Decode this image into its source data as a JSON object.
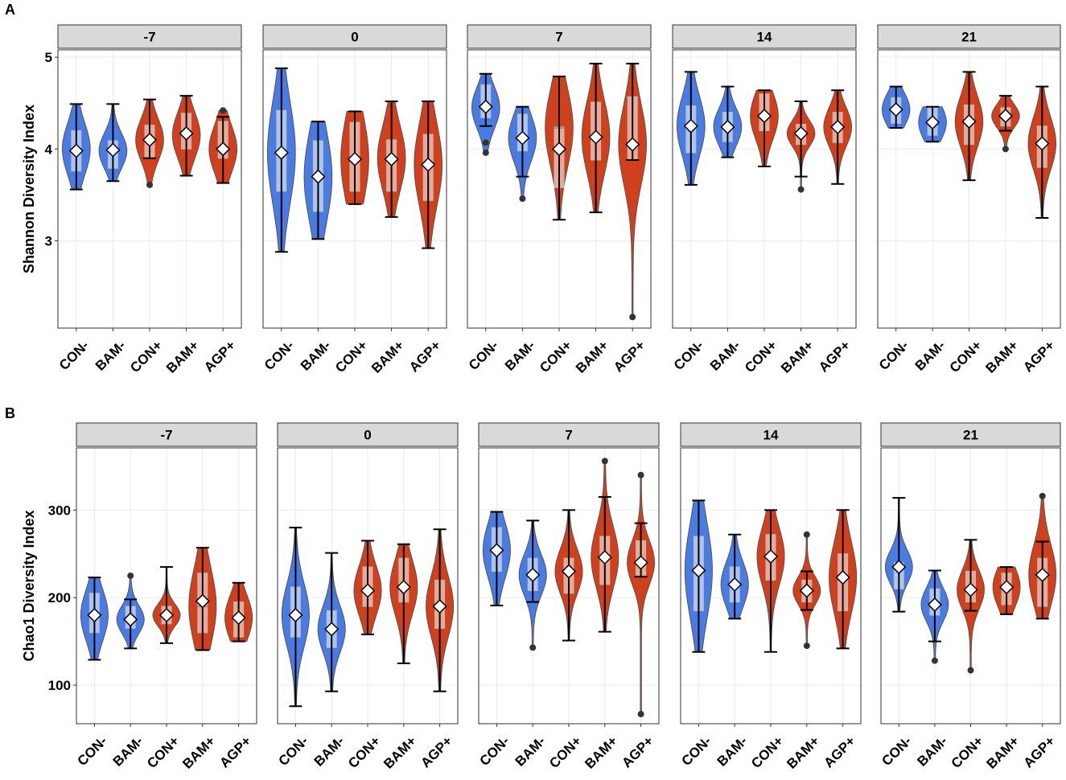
{
  "chart_data": [
    {
      "type": "violin",
      "label": "A",
      "y_label": "Shannon Diversity Index",
      "facets": [
        "-7",
        "0",
        "7",
        "14",
        "21"
      ],
      "categories": [
        "CON-",
        "BAM-",
        "CON+",
        "BAM+",
        "AGP+"
      ],
      "colors": [
        "#4a7be3",
        "#4a7be3",
        "#d0401c",
        "#d0401c",
        "#d0401c"
      ],
      "ylim": [
        2.05,
        5.08
      ],
      "yticks": [
        3,
        4,
        5
      ],
      "grid": true,
      "data": [
        [
          {
            "min": 3.56,
            "q1": 3.76,
            "median": 4.0,
            "q3": 4.2,
            "max": 4.49,
            "mean": 3.98
          },
          {
            "min": 3.65,
            "q1": 3.79,
            "median": 3.98,
            "q3": 4.09,
            "max": 4.49,
            "mean": 3.99
          },
          {
            "min": 3.9,
            "q1": 3.9,
            "median": 4.1,
            "q3": 4.26,
            "max": 4.54,
            "mean": 4.1,
            "outliers": [
              3.61
            ]
          },
          {
            "min": 3.71,
            "q1": 4.0,
            "median": 4.15,
            "q3": 4.39,
            "max": 4.58,
            "mean": 4.17
          },
          {
            "min": 3.63,
            "q1": 3.9,
            "median": 4.0,
            "q3": 4.3,
            "max": 4.35,
            "mean": 4.0,
            "outliers": [
              4.42
            ]
          }
        ],
        [
          {
            "min": 2.88,
            "q1": 3.54,
            "median": 3.96,
            "q3": 4.42,
            "max": 4.88,
            "mean": 3.96
          },
          {
            "min": 3.02,
            "q1": 3.32,
            "median": 3.7,
            "q3": 4.09,
            "max": 4.3,
            "mean": 3.7
          },
          {
            "min": 3.4,
            "q1": 3.54,
            "median": 3.89,
            "q3": 4.29,
            "max": 4.41,
            "mean": 3.89
          },
          {
            "min": 3.26,
            "q1": 3.54,
            "median": 3.9,
            "q3": 4.1,
            "max": 4.52,
            "mean": 3.89
          },
          {
            "min": 2.92,
            "q1": 3.44,
            "median": 3.83,
            "q3": 4.16,
            "max": 4.52,
            "mean": 3.83
          }
        ],
        [
          {
            "min": 4.25,
            "q1": 4.34,
            "median": 4.45,
            "q3": 4.7,
            "max": 4.82,
            "mean": 4.46,
            "outliers": [
              4.07,
              3.96
            ]
          },
          {
            "min": 3.7,
            "q1": 3.98,
            "median": 4.12,
            "q3": 4.38,
            "max": 4.46,
            "mean": 4.12,
            "outliers": [
              3.46
            ]
          },
          {
            "min": 3.23,
            "q1": 3.58,
            "median": 4.23,
            "q3": 4.24,
            "max": 4.79,
            "mean": 4.0
          },
          {
            "min": 3.31,
            "q1": 3.88,
            "median": 4.13,
            "q3": 4.51,
            "max": 4.93,
            "mean": 4.13
          },
          {
            "min": 3.88,
            "q1": 3.88,
            "median": 4.05,
            "q3": 4.57,
            "max": 4.93,
            "mean": 4.05,
            "outliers": [
              2.17
            ]
          }
        ],
        [
          {
            "min": 3.61,
            "q1": 3.96,
            "median": 4.25,
            "q3": 4.47,
            "max": 4.84,
            "mean": 4.25
          },
          {
            "min": 3.91,
            "q1": 4.08,
            "median": 4.24,
            "q3": 4.4,
            "max": 4.68,
            "mean": 4.24
          },
          {
            "min": 3.81,
            "q1": 4.2,
            "median": 4.36,
            "q3": 4.6,
            "max": 4.64,
            "mean": 4.36
          },
          {
            "min": 3.7,
            "q1": 4.05,
            "median": 4.17,
            "q3": 4.27,
            "max": 4.52,
            "mean": 4.17,
            "outliers": [
              3.56
            ]
          },
          {
            "min": 3.62,
            "q1": 4.07,
            "median": 4.24,
            "q3": 4.4,
            "max": 4.64,
            "mean": 4.24
          }
        ],
        [
          {
            "min": 4.23,
            "q1": 4.28,
            "median": 4.43,
            "q3": 4.56,
            "max": 4.68,
            "mean": 4.43
          },
          {
            "min": 4.08,
            "q1": 4.15,
            "median": 4.29,
            "q3": 4.45,
            "max": 4.46,
            "mean": 4.29
          },
          {
            "min": 3.66,
            "q1": 4.05,
            "median": 4.3,
            "q3": 4.48,
            "max": 4.84,
            "mean": 4.3
          },
          {
            "min": 4.2,
            "q1": 4.25,
            "median": 4.36,
            "q3": 4.45,
            "max": 4.58,
            "mean": 4.36,
            "outliers": [
              4.0
            ]
          },
          {
            "min": 3.25,
            "q1": 3.8,
            "median": 4.06,
            "q3": 4.25,
            "max": 4.68,
            "mean": 4.06
          }
        ]
      ]
    },
    {
      "type": "violin",
      "label": "B",
      "y_label": "Chao1 Diversity Index",
      "facets": [
        "-7",
        "0",
        "7",
        "14",
        "21"
      ],
      "categories": [
        "CON-",
        "BAM-",
        "CON+",
        "BAM+",
        "AGP+"
      ],
      "colors": [
        "#4a7be3",
        "#4a7be3",
        "#d0401c",
        "#d0401c",
        "#d0401c"
      ],
      "ylim": [
        56,
        371
      ],
      "yticks": [
        100,
        200,
        300
      ],
      "grid": true,
      "data": [
        [
          {
            "min": 129,
            "q1": 160,
            "median": 180,
            "q3": 205,
            "max": 223,
            "mean": 180
          },
          {
            "min": 142,
            "q1": 165,
            "median": 175,
            "q3": 190,
            "max": 198,
            "mean": 175,
            "outliers": [
              225
            ]
          },
          {
            "min": 148,
            "q1": 170,
            "median": 180,
            "q3": 190,
            "max": 235,
            "mean": 180
          },
          {
            "min": 140,
            "q1": 160,
            "median": 190,
            "q3": 228,
            "max": 257,
            "mean": 196
          },
          {
            "min": 150,
            "q1": 155,
            "median": 177,
            "q3": 195,
            "max": 217,
            "mean": 177
          }
        ],
        [
          {
            "min": 76,
            "q1": 155,
            "median": 180,
            "q3": 212,
            "max": 280,
            "mean": 180
          },
          {
            "min": 93,
            "q1": 143,
            "median": 164,
            "q3": 185,
            "max": 251,
            "mean": 164
          },
          {
            "min": 158,
            "q1": 190,
            "median": 208,
            "q3": 235,
            "max": 265,
            "mean": 208
          },
          {
            "min": 125,
            "q1": 195,
            "median": 212,
            "q3": 245,
            "max": 261,
            "mean": 212
          },
          {
            "min": 93,
            "q1": 165,
            "median": 190,
            "q3": 220,
            "max": 278,
            "mean": 190
          }
        ],
        [
          {
            "min": 191,
            "q1": 230,
            "median": 254,
            "q3": 280,
            "max": 298,
            "mean": 254
          },
          {
            "min": 195,
            "q1": 208,
            "median": 226,
            "q3": 245,
            "max": 288,
            "mean": 226,
            "outliers": [
              143
            ]
          },
          {
            "min": 151,
            "q1": 205,
            "median": 230,
            "q3": 245,
            "max": 300,
            "mean": 230
          },
          {
            "min": 161,
            "q1": 215,
            "median": 246,
            "q3": 270,
            "max": 315,
            "mean": 246,
            "outliers": [
              356
            ]
          },
          {
            "min": 224,
            "q1": 225,
            "median": 240,
            "q3": 265,
            "max": 285,
            "mean": 240,
            "outliers": [
              340,
              67
            ]
          }
        ],
        [
          {
            "min": 138,
            "q1": 185,
            "median": 231,
            "q3": 270,
            "max": 311,
            "mean": 231
          },
          {
            "min": 176,
            "q1": 195,
            "median": 215,
            "q3": 235,
            "max": 272,
            "mean": 215
          },
          {
            "min": 138,
            "q1": 220,
            "median": 247,
            "q3": 272,
            "max": 300,
            "mean": 247
          },
          {
            "min": 186,
            "q1": 195,
            "median": 208,
            "q3": 220,
            "max": 230,
            "mean": 208,
            "outliers": [
              272,
              145
            ]
          },
          {
            "min": 142,
            "q1": 185,
            "median": 223,
            "q3": 250,
            "max": 300,
            "mean": 223
          }
        ],
        [
          {
            "min": 184,
            "q1": 210,
            "median": 235,
            "q3": 240,
            "max": 314,
            "mean": 235
          },
          {
            "min": 150,
            "q1": 180,
            "median": 192,
            "q3": 210,
            "max": 231,
            "mean": 192,
            "outliers": [
              128
            ]
          },
          {
            "min": 185,
            "q1": 195,
            "median": 209,
            "q3": 230,
            "max": 266,
            "mean": 209,
            "outliers": [
              117
            ]
          },
          {
            "min": 181,
            "q1": 192,
            "median": 212,
            "q3": 228,
            "max": 235,
            "mean": 212
          },
          {
            "min": 176,
            "q1": 190,
            "median": 226,
            "q3": 245,
            "max": 264,
            "mean": 226,
            "outliers": [
              316
            ]
          }
        ]
      ]
    }
  ]
}
